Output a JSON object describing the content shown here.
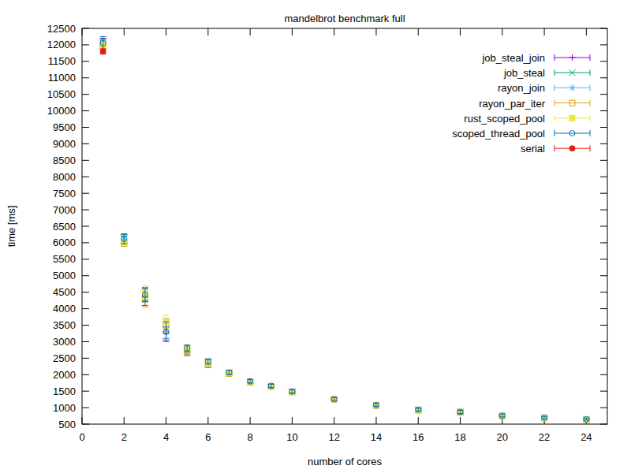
{
  "chart_data": {
    "type": "scatter",
    "title": "mandelbrot benchmark full",
    "x_label": "number of cores",
    "y_label": "time [ms]",
    "x": [
      1,
      2,
      3,
      4,
      5,
      6,
      7,
      8,
      9,
      10,
      12,
      14,
      16,
      18,
      20,
      22,
      24
    ],
    "xlim": [
      0,
      25
    ],
    "xticks": [
      0,
      2,
      4,
      6,
      8,
      10,
      12,
      14,
      16,
      18,
      20,
      22,
      24
    ],
    "ylim": [
      500,
      12500
    ],
    "yticks": [
      500,
      1000,
      1500,
      2000,
      2500,
      3000,
      3500,
      4000,
      4500,
      5000,
      5500,
      6000,
      6500,
      7000,
      7500,
      8000,
      8500,
      9000,
      9500,
      10000,
      10500,
      11000,
      11500,
      12000,
      12500
    ],
    "grid": false,
    "legend": "top-right",
    "series": [
      {
        "name": "job_steal_join",
        "color": "#9400d3",
        "marker": "plus",
        "values": [
          12050,
          6080,
          4350,
          3250,
          2700,
          2320,
          2040,
          1770,
          1640,
          1480,
          1250,
          1070,
          930,
          860,
          740,
          690,
          640
        ],
        "errors": [
          150,
          120,
          250,
          200,
          120,
          90,
          60,
          50,
          60,
          50,
          40,
          50,
          40,
          60,
          40,
          30,
          30
        ]
      },
      {
        "name": "job_steal",
        "color": "#009e73",
        "marker": "cross",
        "values": [
          12050,
          6150,
          4450,
          3350,
          2780,
          2380,
          2060,
          1790,
          1660,
          1490,
          1260,
          1080,
          940,
          870,
          760,
          700,
          650
        ],
        "errors": [
          120,
          100,
          200,
          250,
          100,
          80,
          60,
          50,
          50,
          50,
          40,
          40,
          40,
          50,
          40,
          30,
          30
        ]
      },
      {
        "name": "rayon_join",
        "color": "#56b4e9",
        "marker": "star",
        "values": [
          12030,
          6100,
          4400,
          3400,
          2750,
          2360,
          2050,
          1780,
          1650,
          1480,
          1250,
          1070,
          930,
          870,
          750,
          690,
          640
        ],
        "errors": [
          120,
          100,
          200,
          300,
          100,
          80,
          60,
          50,
          50,
          50,
          40,
          40,
          40,
          50,
          40,
          30,
          30
        ]
      },
      {
        "name": "rayon_par_iter",
        "color": "#e69f00",
        "marker": "square-open",
        "values": [
          12000,
          5980,
          4300,
          3500,
          2700,
          2300,
          2030,
          1770,
          1640,
          1470,
          1240,
          1060,
          920,
          860,
          740,
          680,
          630
        ],
        "errors": [
          100,
          80,
          250,
          200,
          100,
          80,
          60,
          50,
          50,
          40,
          40,
          40,
          40,
          60,
          40,
          30,
          30
        ]
      },
      {
        "name": "rust_scoped_pool",
        "color": "#f0e442",
        "marker": "square",
        "values": [
          12000,
          6000,
          4500,
          3600,
          2800,
          2350,
          2050,
          1790,
          1650,
          1480,
          1250,
          1070,
          930,
          880,
          750,
          690,
          640
        ],
        "errors": [
          100,
          80,
          200,
          200,
          100,
          80,
          60,
          50,
          50,
          40,
          40,
          40,
          40,
          60,
          40,
          30,
          30
        ]
      },
      {
        "name": "scoped_thread_pool",
        "color": "#0072b2",
        "marker": "circle-open",
        "values": [
          12050,
          6120,
          4420,
          3300,
          2800,
          2400,
          2070,
          1800,
          1660,
          1490,
          1260,
          1080,
          940,
          870,
          760,
          700,
          650
        ],
        "errors": [
          200,
          150,
          200,
          300,
          100,
          80,
          60,
          50,
          50,
          50,
          40,
          40,
          40,
          50,
          40,
          30,
          30
        ]
      },
      {
        "name": "serial",
        "color": "#e51e10",
        "marker": "circle",
        "values": [
          11800,
          null,
          null,
          null,
          null,
          null,
          null,
          null,
          null,
          null,
          null,
          null,
          null,
          null,
          null,
          null,
          null
        ],
        "errors": [
          80,
          null,
          null,
          null,
          null,
          null,
          null,
          null,
          null,
          null,
          null,
          null,
          null,
          null,
          null,
          null,
          null
        ]
      }
    ]
  }
}
